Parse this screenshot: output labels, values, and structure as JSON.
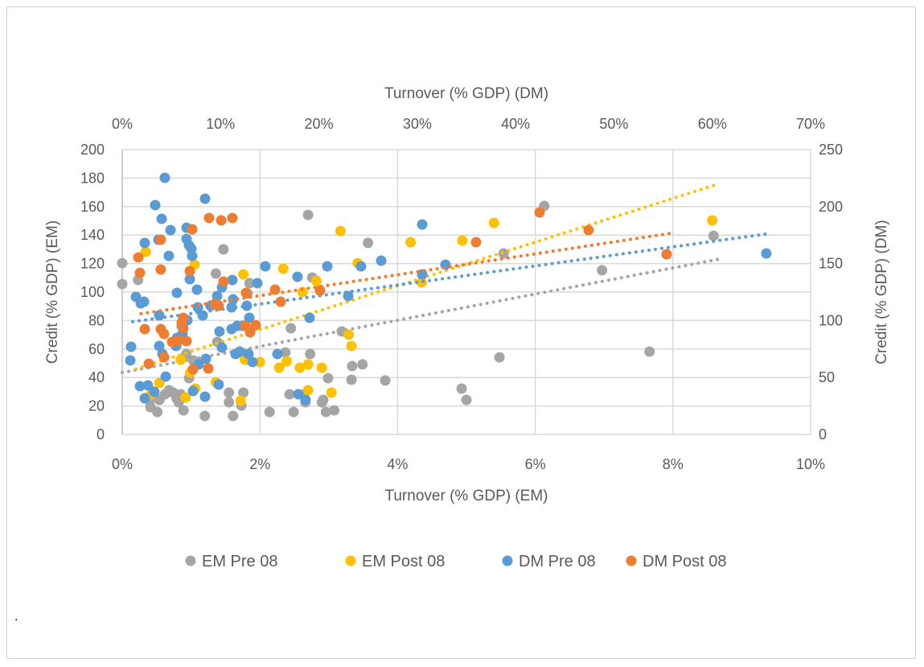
{
  "chart_data": {
    "type": "scatter",
    "footnote": ".",
    "axes": {
      "x_bottom": {
        "label": "Turnover  (% GDP) (EM)",
        "range": [
          0,
          10
        ],
        "ticks": [
          "0%",
          "2%",
          "4%",
          "6%",
          "8%",
          "10%"
        ],
        "tick_values": [
          0,
          2,
          4,
          6,
          8,
          10
        ]
      },
      "x_top": {
        "label": "Turnover (% GDP) (DM)",
        "range": [
          0,
          70
        ],
        "ticks": [
          "0%",
          "10%",
          "20%",
          "30%",
          "40%",
          "50%",
          "60%",
          "70%"
        ],
        "tick_values": [
          0,
          10,
          20,
          30,
          40,
          50,
          60,
          70
        ]
      },
      "y_left": {
        "label": "Credit (% GDP) (EM)",
        "range": [
          0,
          200
        ],
        "ticks": [
          "0",
          "20",
          "40",
          "60",
          "80",
          "100",
          "120",
          "140",
          "160",
          "180",
          "200"
        ],
        "tick_values": [
          0,
          20,
          40,
          60,
          80,
          100,
          120,
          140,
          160,
          180,
          200
        ]
      },
      "y_right": {
        "label": "Credit (% GDP) (DM)",
        "range": [
          0,
          250
        ],
        "ticks": [
          "0",
          "50",
          "100",
          "150",
          "200",
          "250"
        ],
        "tick_values": [
          0,
          50,
          100,
          150,
          200,
          250
        ]
      }
    },
    "grid": true,
    "legend_position": "bottom",
    "series": [
      {
        "name": "EM Pre 08",
        "color": "#A5A5A5",
        "axes": "bottom-left",
        "points": [
          [
            0,
            120.3
          ],
          [
            0,
            105.6
          ],
          [
            0.23,
            108.5
          ],
          [
            0.36,
            25.4
          ],
          [
            0.4,
            23.7
          ],
          [
            0.41,
            19.2
          ],
          [
            0.51,
            15.8
          ],
          [
            0.54,
            24.3
          ],
          [
            0.62,
            28.2
          ],
          [
            0.68,
            31.1
          ],
          [
            0.74,
            29.4
          ],
          [
            0.79,
            25.4
          ],
          [
            0.82,
            22.6
          ],
          [
            0.85,
            28.2
          ],
          [
            0.89,
            16.9
          ],
          [
            0.93,
            56.5
          ],
          [
            0.97,
            39.5
          ],
          [
            1.03,
            52
          ],
          [
            1.36,
            113
          ],
          [
            1.2,
            13
          ],
          [
            1.47,
            130
          ],
          [
            1.38,
            65
          ],
          [
            1.55,
            22.6
          ],
          [
            1.55,
            29.4
          ],
          [
            1.73,
            20.3
          ],
          [
            1.76,
            29.4
          ],
          [
            1.85,
            106.2
          ],
          [
            1.82,
            98.9
          ],
          [
            2.7,
            154.2
          ],
          [
            2.76,
            110.2
          ],
          [
            2.37,
            57.6
          ],
          [
            2.45,
            74.6
          ],
          [
            2.43,
            28.2
          ],
          [
            2.49,
            15.8
          ],
          [
            2.64,
            28.2
          ],
          [
            2.73,
            56.5
          ],
          [
            2.66,
            22.6
          ],
          [
            2.9,
            22.6
          ],
          [
            2.96,
            15.8
          ],
          [
            3.08,
            16.9
          ],
          [
            2.92,
            24.3
          ],
          [
            2.99,
            39.5
          ],
          [
            3.19,
            72.3
          ],
          [
            3.33,
            38.4
          ],
          [
            3.34,
            48
          ],
          [
            3.49,
            49.2
          ],
          [
            3.57,
            134.5
          ],
          [
            3.82,
            37.9
          ],
          [
            4.93,
            32.2
          ],
          [
            5,
            24.3
          ],
          [
            5.48,
            54.2
          ],
          [
            5.54,
            127.1
          ],
          [
            6.13,
            160.5
          ],
          [
            6.97,
            115.3
          ],
          [
            7.66,
            58.2
          ],
          [
            8.59,
            139.5
          ],
          [
            2.14,
            15.8
          ],
          [
            1.61,
            13
          ]
        ],
        "trendline": [
          [
            0,
            43.5
          ],
          [
            8.66,
            123
          ]
        ]
      },
      {
        "name": "EM Post 08",
        "color": "#FFC000",
        "axes": "bottom-left",
        "points": [
          [
            0.34,
            128.2
          ],
          [
            1.05,
            119.2
          ],
          [
            1.76,
            112.4
          ],
          [
            0.54,
            36.2
          ],
          [
            0.42,
            28.2
          ],
          [
            0.92,
            26
          ],
          [
            1.06,
            32.2
          ],
          [
            1.36,
            36.7
          ],
          [
            1.72,
            23.7
          ],
          [
            0.85,
            52.5
          ],
          [
            0.99,
            43.5
          ],
          [
            1.81,
            52.5
          ],
          [
            3.17,
            142.9
          ],
          [
            2.34,
            116.4
          ],
          [
            2.82,
            107.9
          ],
          [
            2.62,
            100
          ],
          [
            3.29,
            70.1
          ],
          [
            3.33,
            62.1
          ],
          [
            3.42,
            120.3
          ],
          [
            2.7,
            49.2
          ],
          [
            2.9,
            46.9
          ],
          [
            2.58,
            46.9
          ],
          [
            2.39,
            51.4
          ],
          [
            2.28,
            46.9
          ],
          [
            2.7,
            31.1
          ],
          [
            3.04,
            29.4
          ],
          [
            1.78,
            52.5
          ],
          [
            2,
            50.8
          ],
          [
            4.19,
            135
          ],
          [
            4.94,
            136.2
          ],
          [
            5.4,
            148.6
          ],
          [
            4.35,
            106.8
          ],
          [
            8.57,
            150.3
          ]
        ],
        "trendline": [
          [
            0.2,
            46
          ],
          [
            8.6,
            175
          ]
        ]
      },
      {
        "name": "DM Pre 08",
        "color": "#5B9BD5",
        "axes": "top-right",
        "points": [
          [
            4.33,
            225.3
          ],
          [
            3.35,
            201.3
          ],
          [
            4.01,
            189.3
          ],
          [
            4.91,
            179.4
          ],
          [
            8.42,
            206.9
          ],
          [
            6.54,
            181.5
          ],
          [
            6.54,
            171.6
          ],
          [
            6.79,
            166
          ],
          [
            7.03,
            163.1
          ],
          [
            7.11,
            156.8
          ],
          [
            2.29,
            168.1
          ],
          [
            3.68,
            170.9
          ],
          [
            4.74,
            156.8
          ],
          [
            5.56,
            124.3
          ],
          [
            6.62,
            100.3
          ],
          [
            3.76,
            104.5
          ],
          [
            1.39,
            120.8
          ],
          [
            1.88,
            115.1
          ],
          [
            2.21,
            116.5
          ],
          [
            0.9,
            77
          ],
          [
            0.82,
            65
          ],
          [
            3.76,
            77.7
          ],
          [
            4.09,
            70.6
          ],
          [
            5.48,
            77.7
          ],
          [
            6.05,
            95.3
          ],
          [
            5.56,
            84.7
          ],
          [
            6.13,
            88.3
          ],
          [
            8.18,
            104.5
          ],
          [
            7.69,
            111.6
          ],
          [
            8.99,
            113
          ],
          [
            9.65,
            121.5
          ],
          [
            10.14,
            129.2
          ],
          [
            11.2,
            135.6
          ],
          [
            11.28,
            118.6
          ],
          [
            11.12,
            111.6
          ],
          [
            11.69,
            95.3
          ],
          [
            11.12,
            92.5
          ],
          [
            12.26,
            95.3
          ],
          [
            12.67,
            113
          ],
          [
            12.92,
            102.4
          ],
          [
            13.74,
            132.8
          ],
          [
            14.55,
            147.6
          ],
          [
            8.5,
            66.4
          ],
          [
            7.77,
            61.4
          ],
          [
            10.14,
            76.3
          ],
          [
            9.81,
            43.8
          ],
          [
            8.42,
            33.2
          ],
          [
            7.2,
            38.1
          ],
          [
            4.42,
            50.8
          ],
          [
            2.62,
            43.1
          ],
          [
            3.27,
            37.4
          ],
          [
            2.29,
            31.8
          ],
          [
            1.8,
            42.4
          ],
          [
            9.89,
            90.4
          ],
          [
            11.53,
            70.6
          ],
          [
            11.94,
            72.7
          ],
          [
            12.84,
            70.6
          ],
          [
            13.25,
            63.6
          ],
          [
            15.78,
            70.6
          ],
          [
            17.82,
            138.4
          ],
          [
            19.05,
            102.4
          ],
          [
            20.85,
            147.6
          ],
          [
            22.98,
            121.5
          ],
          [
            24.28,
            147.6
          ],
          [
            26.33,
            152.5
          ],
          [
            30.5,
            184.3
          ],
          [
            30.5,
            140.5
          ],
          [
            32.87,
            149
          ],
          [
            65.49,
            158.9
          ],
          [
            17.91,
            35.3
          ],
          [
            18.64,
            30.4
          ],
          [
            6.87,
            136.3
          ],
          [
            7.6,
            127.1
          ]
        ],
        "trendline": [
          [
            1.06,
            99
          ],
          [
            65.9,
            176.5
          ]
        ]
      },
      {
        "name": "DM Post 08",
        "color": "#ED7D31",
        "axes": "top-right",
        "points": [
          [
            11.2,
            190
          ],
          [
            8.83,
            190
          ],
          [
            10.06,
            187.9
          ],
          [
            7.11,
            180.1
          ],
          [
            3.92,
            170.9
          ],
          [
            1.64,
            155.4
          ],
          [
            1.8,
            141.9
          ],
          [
            3.92,
            144.8
          ],
          [
            6.87,
            143.4
          ],
          [
            9.4,
            114.4
          ],
          [
            9.81,
            113
          ],
          [
            10.3,
            134.2
          ],
          [
            12.59,
            124.3
          ],
          [
            15.54,
            127.1
          ],
          [
            16.11,
            116.5
          ],
          [
            12.51,
            95.3
          ],
          [
            13,
            89.7
          ],
          [
            13.57,
            96
          ],
          [
            2.29,
            92.5
          ],
          [
            3.92,
            92.5
          ],
          [
            4.25,
            88.3
          ],
          [
            6.21,
            102.4
          ],
          [
            6.05,
            98.2
          ],
          [
            6.21,
            93.2
          ],
          [
            5.72,
            82.6
          ],
          [
            5.07,
            81.2
          ],
          [
            6.54,
            81.9
          ],
          [
            2.7,
            62.1
          ],
          [
            4.25,
            67.8
          ],
          [
            7.2,
            57.2
          ],
          [
            8.75,
            57.9
          ],
          [
            42.44,
            194.9
          ],
          [
            47.42,
            179.4
          ],
          [
            55.36,
            158.2
          ],
          [
            35.98,
            168.8
          ],
          [
            20.11,
            126.4
          ]
        ],
        "trendline": [
          [
            1.9,
            106
          ],
          [
            55.7,
            176.5
          ]
        ]
      }
    ]
  }
}
